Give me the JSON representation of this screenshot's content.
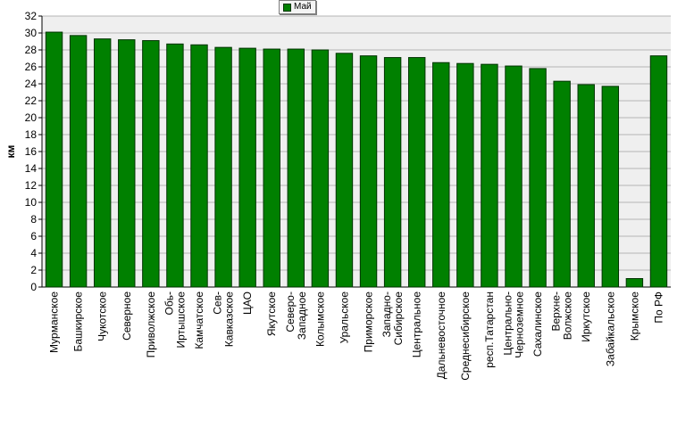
{
  "chart_data": {
    "type": "bar",
    "title": "",
    "xlabel": "",
    "ylabel": "км",
    "ylim": [
      0,
      32
    ],
    "y_ticks": [
      0,
      2,
      4,
      6,
      8,
      10,
      12,
      14,
      16,
      18,
      20,
      22,
      24,
      26,
      28,
      30,
      32
    ],
    "grid": true,
    "legend_position": "top-center",
    "bar_color": "#008000",
    "plot_background": "#efefef",
    "series": [
      {
        "name": "Май",
        "values": [
          30.1,
          29.7,
          29.3,
          29.2,
          29.1,
          28.7,
          28.6,
          28.3,
          28.2,
          28.1,
          28.1,
          28.0,
          27.6,
          27.3,
          27.1,
          27.1,
          26.5,
          26.4,
          26.3,
          26.1,
          25.8,
          24.3,
          23.9,
          23.7,
          1.0,
          27.3
        ]
      }
    ],
    "categories": [
      [
        "Мурманское"
      ],
      [
        "Башкирское"
      ],
      [
        "Чукотское"
      ],
      [
        "Северное"
      ],
      [
        "Приволжское"
      ],
      [
        "Обь-",
        "Иртышское"
      ],
      [
        "Камчатское"
      ],
      [
        "Сев-",
        "Кавказское"
      ],
      [
        "ЦАО"
      ],
      [
        "Якутское"
      ],
      [
        "Северо-",
        "Западное"
      ],
      [
        "Колымское"
      ],
      [
        "Уральское"
      ],
      [
        "Приморское"
      ],
      [
        "Западно-",
        "Сибирское"
      ],
      [
        "Центральное"
      ],
      [
        "Дальневосточное"
      ],
      [
        "Среднесибирское"
      ],
      [
        "респ.Татарстан"
      ],
      [
        "Центрально-",
        "Черноземное"
      ],
      [
        "Сахалинское"
      ],
      [
        "Верхне-",
        "Волжское"
      ],
      [
        "Иркутское"
      ],
      [
        "Забайкальское"
      ],
      [
        "Крымское"
      ],
      [
        "По РФ"
      ]
    ]
  }
}
